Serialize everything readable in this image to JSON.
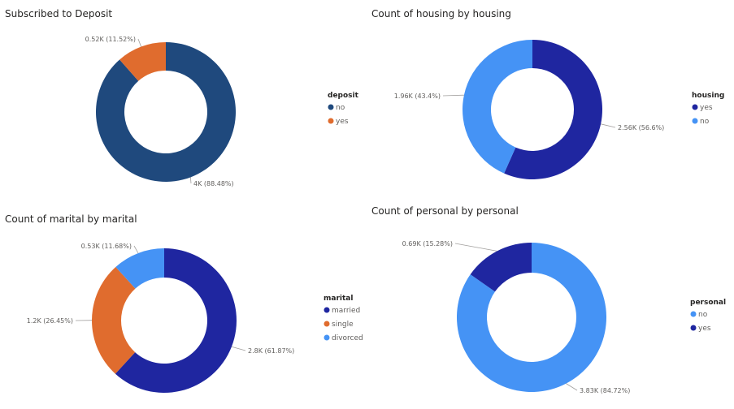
{
  "chart_data": [
    {
      "type": "pie",
      "title": "Subscribed to Deposit",
      "legend_title": "deposit",
      "legend_position": "right",
      "categories": [
        "no",
        "yes"
      ],
      "values": [
        4000,
        520
      ],
      "percents": [
        88.48,
        11.52
      ],
      "data_labels": [
        "4K (88.48%)",
        "0.52K (11.52%)"
      ],
      "colors": [
        "#1f497d",
        "#e06c2e"
      ]
    },
    {
      "type": "pie",
      "title": "Count of housing by housing",
      "legend_title": "housing",
      "legend_position": "right",
      "categories": [
        "yes",
        "no"
      ],
      "values": [
        2560,
        1960
      ],
      "percents": [
        56.6,
        43.4
      ],
      "data_labels": [
        "2.56K (56.6%)",
        "1.96K (43.4%)"
      ],
      "colors": [
        "#1f26a0",
        "#4593f5"
      ]
    },
    {
      "type": "pie",
      "title": "Count of marital by marital",
      "legend_title": "marital",
      "legend_position": "right",
      "categories": [
        "married",
        "single",
        "divorced"
      ],
      "values": [
        2800,
        1200,
        530
      ],
      "percents": [
        61.87,
        26.45,
        11.68
      ],
      "data_labels": [
        "2.8K (61.87%)",
        "1.2K (26.45%)",
        "0.53K (11.68%)"
      ],
      "colors": [
        "#1f26a0",
        "#e06c2e",
        "#4593f5"
      ]
    },
    {
      "type": "pie",
      "title": "Count of personal by personal",
      "legend_title": "personal",
      "legend_position": "right",
      "categories": [
        "no",
        "yes"
      ],
      "values": [
        3830,
        690
      ],
      "percents": [
        84.72,
        15.28
      ],
      "data_labels": [
        "3.83K (84.72%)",
        "0.69K (15.28%)"
      ],
      "colors": [
        "#4593f5",
        "#1f26a0"
      ]
    }
  ]
}
